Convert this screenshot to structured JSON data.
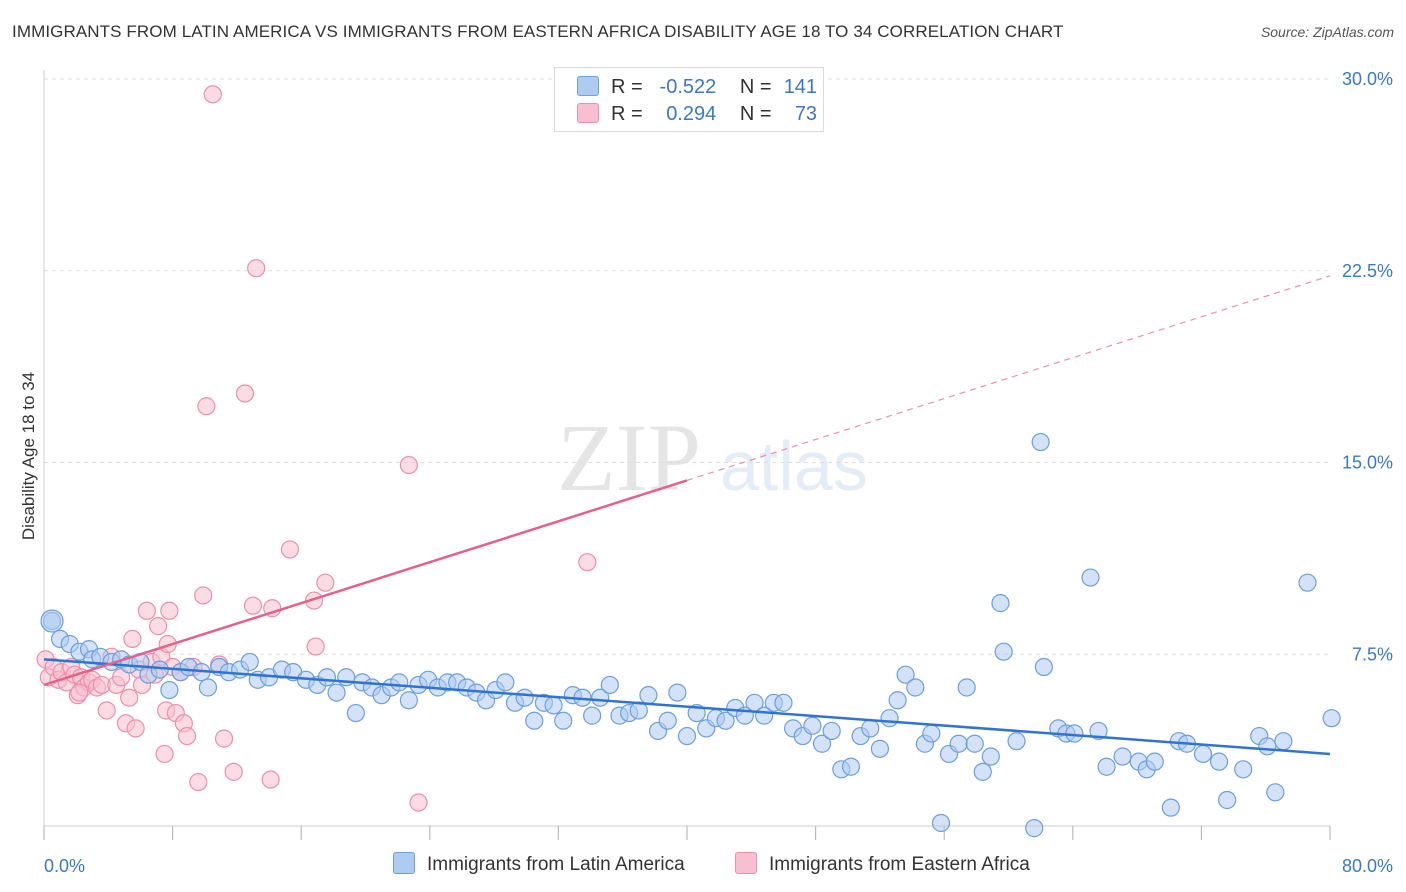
{
  "header": {
    "title": "IMMIGRANTS FROM LATIN AMERICA VS IMMIGRANTS FROM EASTERN AFRICA DISABILITY AGE 18 TO 34 CORRELATION CHART",
    "source": "Source: ZipAtlas.com"
  },
  "watermark": {
    "zip": "ZIP",
    "atlas": "atlas"
  },
  "legend": {
    "r_label": "R =",
    "n_label": "N =",
    "rows": [
      {
        "r": "-0.522",
        "n": "141"
      },
      {
        "r": "0.294",
        "n": "73"
      }
    ]
  },
  "colors": {
    "blue_fill": "#aecbf0",
    "blue_stroke": "#6c9fdc",
    "blue_line": "#2f74d0",
    "pink_fill": "#f7bfd0",
    "pink_stroke": "#ea8fac",
    "pink_line": "#e5608a",
    "axis_label": "#3a78c9",
    "grid": "#dddddd"
  },
  "chart_data": {
    "type": "scatter",
    "title": "IMMIGRANTS FROM LATIN AMERICA VS IMMIGRANTS FROM EASTERN AFRICA DISABILITY AGE 18 TO 34 CORRELATION CHART",
    "xlabel": "",
    "ylabel": "Disability Age 18 to 34",
    "xlim": [
      0,
      80
    ],
    "ylim": [
      0,
      30
    ],
    "x_tick_labels": [
      "0.0%",
      "80.0%"
    ],
    "y_ticks": [
      7.5,
      15.0,
      22.5,
      30.0
    ],
    "y_tick_labels": [
      "7.5%",
      "15.0%",
      "22.5%",
      "30.0%"
    ],
    "grid": "horizontal dashed",
    "legend_position": "bottom",
    "series": [
      {
        "name": "Immigrants from Latin America",
        "r": -0.522,
        "n": 141,
        "trend": {
          "x": [
            0,
            80
          ],
          "y": [
            7.3,
            3.6
          ]
        },
        "points": [
          [
            0.5,
            8.8
          ],
          [
            1.0,
            8.1
          ],
          [
            1.6,
            7.9
          ],
          [
            2.2,
            7.6
          ],
          [
            2.8,
            7.7
          ],
          [
            3.0,
            7.3
          ],
          [
            3.5,
            7.4
          ],
          [
            4.2,
            7.2
          ],
          [
            4.8,
            7.3
          ],
          [
            5.3,
            7.1
          ],
          [
            6.0,
            7.2
          ],
          [
            6.5,
            6.7
          ],
          [
            7.2,
            6.9
          ],
          [
            7.8,
            6.1
          ],
          [
            8.5,
            6.8
          ],
          [
            9.0,
            7.0
          ],
          [
            9.8,
            6.8
          ],
          [
            10.2,
            6.2
          ],
          [
            10.9,
            7.0
          ],
          [
            11.5,
            6.8
          ],
          [
            12.2,
            6.9
          ],
          [
            12.8,
            7.2
          ],
          [
            13.3,
            6.5
          ],
          [
            14.0,
            6.6
          ],
          [
            14.8,
            6.9
          ],
          [
            15.5,
            6.8
          ],
          [
            16.3,
            6.5
          ],
          [
            17.0,
            6.3
          ],
          [
            17.6,
            6.6
          ],
          [
            18.2,
            6.0
          ],
          [
            18.8,
            6.6
          ],
          [
            19.4,
            5.2
          ],
          [
            19.8,
            6.4
          ],
          [
            20.4,
            6.2
          ],
          [
            21.0,
            5.9
          ],
          [
            21.6,
            6.2
          ],
          [
            22.1,
            6.4
          ],
          [
            22.7,
            5.7
          ],
          [
            23.3,
            6.3
          ],
          [
            23.9,
            6.5
          ],
          [
            24.5,
            6.2
          ],
          [
            25.1,
            6.4
          ],
          [
            25.7,
            6.4
          ],
          [
            26.3,
            6.2
          ],
          [
            26.9,
            6.0
          ],
          [
            27.5,
            5.7
          ],
          [
            28.1,
            6.1
          ],
          [
            28.7,
            6.4
          ],
          [
            29.3,
            5.6
          ],
          [
            29.9,
            5.8
          ],
          [
            30.5,
            4.9
          ],
          [
            31.1,
            5.6
          ],
          [
            31.7,
            5.5
          ],
          [
            32.3,
            4.9
          ],
          [
            32.9,
            5.9
          ],
          [
            33.5,
            5.8
          ],
          [
            34.1,
            5.1
          ],
          [
            34.6,
            5.8
          ],
          [
            35.2,
            6.3
          ],
          [
            35.8,
            5.1
          ],
          [
            36.4,
            5.2
          ],
          [
            37.0,
            5.3
          ],
          [
            37.6,
            5.9
          ],
          [
            38.2,
            4.5
          ],
          [
            38.8,
            4.9
          ],
          [
            39.4,
            6.0
          ],
          [
            40.0,
            4.3
          ],
          [
            40.6,
            5.2
          ],
          [
            41.2,
            4.6
          ],
          [
            41.8,
            5.0
          ],
          [
            42.4,
            4.9
          ],
          [
            43.0,
            5.4
          ],
          [
            43.6,
            5.1
          ],
          [
            44.2,
            5.6
          ],
          [
            44.8,
            5.1
          ],
          [
            45.4,
            5.6
          ],
          [
            46.0,
            5.6
          ],
          [
            46.6,
            4.6
          ],
          [
            47.2,
            4.3
          ],
          [
            47.8,
            4.7
          ],
          [
            48.4,
            4.0
          ],
          [
            49.0,
            4.5
          ],
          [
            49.6,
            3.0
          ],
          [
            50.2,
            3.1
          ],
          [
            50.8,
            4.3
          ],
          [
            51.4,
            4.6
          ],
          [
            52.0,
            3.8
          ],
          [
            52.6,
            5.0
          ],
          [
            53.1,
            5.7
          ],
          [
            53.6,
            6.7
          ],
          [
            54.2,
            6.2
          ],
          [
            54.8,
            4.0
          ],
          [
            55.2,
            4.4
          ],
          [
            55.8,
            0.9
          ],
          [
            56.3,
            3.6
          ],
          [
            56.9,
            4.0
          ],
          [
            57.4,
            6.2
          ],
          [
            57.9,
            4.0
          ],
          [
            58.4,
            2.9
          ],
          [
            58.9,
            3.5
          ],
          [
            59.5,
            9.5
          ],
          [
            59.7,
            7.6
          ],
          [
            60.5,
            4.1
          ],
          [
            61.6,
            0.7
          ],
          [
            62.0,
            15.8
          ],
          [
            62.2,
            7.0
          ],
          [
            63.1,
            4.6
          ],
          [
            63.6,
            4.4
          ],
          [
            64.1,
            4.4
          ],
          [
            65.1,
            10.5
          ],
          [
            65.6,
            4.5
          ],
          [
            66.1,
            3.1
          ],
          [
            67.1,
            3.5
          ],
          [
            68.1,
            3.3
          ],
          [
            68.6,
            3.0
          ],
          [
            69.1,
            3.3
          ],
          [
            70.1,
            1.5
          ],
          [
            70.6,
            4.1
          ],
          [
            71.1,
            4.0
          ],
          [
            72.1,
            3.6
          ],
          [
            73.1,
            3.3
          ],
          [
            73.6,
            1.8
          ],
          [
            74.6,
            3.0
          ],
          [
            75.6,
            4.3
          ],
          [
            76.1,
            3.9
          ],
          [
            76.6,
            2.1
          ],
          [
            77.1,
            4.1
          ],
          [
            78.6,
            10.3
          ],
          [
            80.1,
            5.0
          ]
        ]
      },
      {
        "name": "Immigrants from Eastern Africa",
        "r": 0.294,
        "n": 73,
        "trend": {
          "x": [
            0,
            40
          ],
          "y": [
            6.3,
            14.3
          ]
        },
        "trend_dashed": {
          "x": [
            40,
            80
          ],
          "y": [
            14.3,
            22.3
          ]
        },
        "points": [
          [
            0.1,
            7.3
          ],
          [
            0.3,
            6.6
          ],
          [
            0.6,
            7.0
          ],
          [
            0.9,
            6.5
          ],
          [
            1.1,
            6.8
          ],
          [
            1.4,
            6.4
          ],
          [
            1.7,
            7.0
          ],
          [
            1.9,
            6.7
          ],
          [
            2.1,
            5.9
          ],
          [
            2.3,
            6.6
          ],
          [
            2.5,
            6.2
          ],
          [
            2.8,
            6.4
          ],
          [
            3.0,
            6.5
          ],
          [
            3.3,
            6.2
          ],
          [
            3.6,
            6.3
          ],
          [
            3.9,
            5.3
          ],
          [
            4.2,
            7.4
          ],
          [
            4.5,
            6.3
          ],
          [
            4.8,
            6.6
          ],
          [
            5.1,
            4.8
          ],
          [
            5.3,
            5.8
          ],
          [
            5.5,
            8.1
          ],
          [
            5.7,
            4.6
          ],
          [
            5.9,
            6.9
          ],
          [
            6.1,
            6.3
          ],
          [
            6.4,
            9.2
          ],
          [
            6.7,
            7.2
          ],
          [
            6.9,
            6.7
          ],
          [
            7.1,
            8.6
          ],
          [
            7.3,
            7.4
          ],
          [
            7.5,
            3.6
          ],
          [
            7.6,
            5.3
          ],
          [
            7.7,
            7.9
          ],
          [
            7.8,
            9.2
          ],
          [
            8.0,
            7.0
          ],
          [
            8.2,
            5.2
          ],
          [
            8.5,
            6.8
          ],
          [
            8.7,
            4.8
          ],
          [
            8.9,
            4.3
          ],
          [
            9.3,
            7.0
          ],
          [
            9.6,
            2.5
          ],
          [
            9.9,
            9.8
          ],
          [
            10.1,
            17.2
          ],
          [
            10.5,
            29.4
          ],
          [
            10.9,
            7.1
          ],
          [
            11.2,
            4.2
          ],
          [
            11.8,
            2.9
          ],
          [
            12.5,
            17.7
          ],
          [
            13.0,
            9.4
          ],
          [
            13.2,
            22.6
          ],
          [
            14.1,
            2.6
          ],
          [
            14.2,
            9.3
          ],
          [
            15.3,
            11.6
          ],
          [
            16.8,
            9.6
          ],
          [
            16.9,
            7.8
          ],
          [
            17.5,
            10.3
          ],
          [
            22.7,
            14.9
          ],
          [
            23.3,
            1.7
          ],
          [
            33.8,
            11.1
          ],
          [
            2.2,
            6.0
          ]
        ]
      }
    ]
  },
  "bottom_legend": [
    {
      "label": "Immigrants from Latin America"
    },
    {
      "label": "Immigrants from Eastern Africa"
    }
  ]
}
